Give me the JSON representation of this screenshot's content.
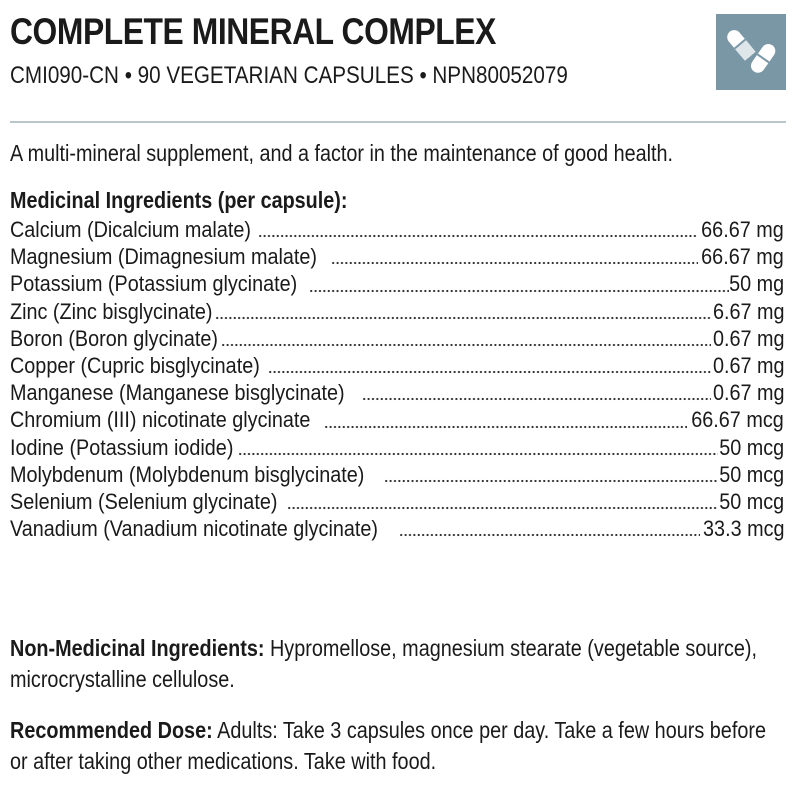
{
  "header": {
    "title": "COMPLETE MINERAL COMPLEX",
    "subtitle": "CMI090-CN • 90 VEGETARIAN CAPSULES • NPN80052079",
    "icon": "capsules-icon",
    "icon_bg_color": "#7a97a6"
  },
  "intro": "A multi-mineral supplement, and a factor in the maintenance of good health.",
  "medicinal": {
    "heading": "Medicinal Ingredients (per capsule):",
    "items": [
      {
        "name": "Calcium (Dicalcium malate)",
        "amount": "66.67 mg"
      },
      {
        "name": "Magnesium (Dimagnesium malate)",
        "amount": "66.67 mg"
      },
      {
        "name": "Potassium (Potassium glycinate)",
        "amount": "50 mg"
      },
      {
        "name": "Zinc (Zinc bisglycinate)",
        "amount": "6.67 mg"
      },
      {
        "name": "Boron (Boron glycinate)",
        "amount": "0.67 mg"
      },
      {
        "name": "Copper (Cupric bisglycinate)",
        "amount": "0.67 mg"
      },
      {
        "name": "Manganese (Manganese bisglycinate)",
        "amount": "0.67 mg"
      },
      {
        "name": "Chromium (III) nicotinate glycinate",
        "amount": "66.67 mcg"
      },
      {
        "name": "Iodine (Potassium iodide)",
        "amount": "50 mcg"
      },
      {
        "name": "Molybdenum (Molybdenum bisglycinate)",
        "amount": "50 mcg"
      },
      {
        "name": "Selenium (Selenium glycinate)",
        "amount": "50 mcg"
      },
      {
        "name": "Vanadium (Vanadium nicotinate glycinate)",
        "amount": "33.3 mcg"
      }
    ]
  },
  "non_medicinal": {
    "label": "Non-Medicinal Ingredients:",
    "text": " Hypromellose, magnesium stearate (vegetable source), microcrystalline cellulose."
  },
  "dose": {
    "label": "Recommended Dose:",
    "text": " Adults: Take 3 capsules once per day. Take a few hours before or after taking other medications. Take with food."
  }
}
